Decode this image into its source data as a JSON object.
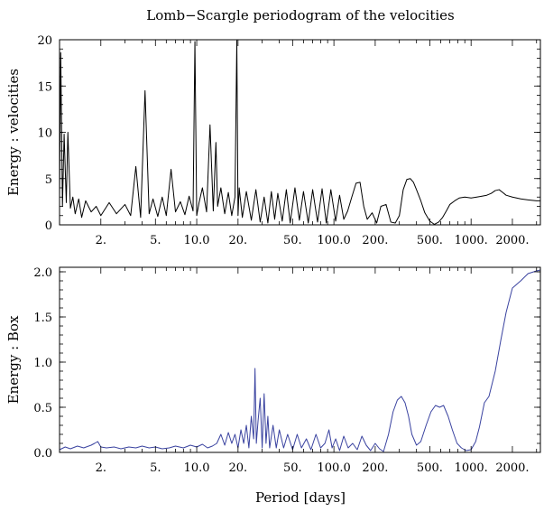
{
  "figure": {
    "title": "Lomb−Scargle periodogram of the velocities",
    "xlabel": "Period [days]"
  },
  "chart_data": [
    {
      "type": "line",
      "title": "Lomb−Scargle periodogram of the velocities",
      "xlabel": "Period [days]",
      "ylabel": "Energy : velocities",
      "xscale": "log",
      "xlim": [
        1.0,
        3200
      ],
      "ylim": [
        0,
        20
      ],
      "x_ticks": [
        2,
        5,
        10,
        20,
        50,
        100,
        200,
        500,
        1000,
        2000
      ],
      "x_tick_labels": [
        "2.",
        "5.",
        "10.0",
        "20.",
        "50.",
        "100.0",
        "200.",
        "500.",
        "1000.",
        "2000."
      ],
      "y_ticks": [
        0,
        5,
        10,
        15,
        20
      ],
      "y_tick_labels": [
        "0",
        "5",
        "10",
        "15",
        "20"
      ],
      "grid": false,
      "line_color": "#000000",
      "series": [
        {
          "x": [
            1.0,
            1.02,
            1.05,
            1.08,
            1.12,
            1.15,
            1.2,
            1.25,
            1.3,
            1.38,
            1.45,
            1.55,
            1.7,
            1.85,
            2.0,
            2.3,
            2.6,
            3.0,
            3.3,
            3.6,
            3.9,
            4.2,
            4.5,
            4.8,
            5.2,
            5.6,
            6.0,
            6.5,
            7.0,
            7.6,
            8.2,
            8.8,
            9.4,
            9.7,
            10.0,
            10.4,
            11.0,
            11.8,
            12.5,
            13.2,
            13.8,
            14.2,
            15.0,
            16.0,
            17.0,
            18.0,
            19.0,
            19.6,
            20.0,
            20.4,
            21.5,
            23.0,
            25.0,
            27.0,
            29.0,
            31.0,
            33.0,
            35.0,
            37.0,
            39.0,
            42.0,
            45.0,
            48.0,
            52.0,
            56.0,
            60.0,
            65.0,
            70.0,
            76.0,
            82.0,
            88.0,
            95.0,
            103.0,
            110.0,
            118.0,
            126.0,
            135.0,
            145.0,
            155.0,
            165.0,
            175.0,
            190.0,
            205.0,
            220.0,
            240.0,
            260.0,
            280.0,
            300.0,
            320.0,
            340.0,
            360.0,
            380.0,
            400.0,
            430.0,
            460.0,
            500.0,
            540.0,
            580.0,
            620.0,
            660.0,
            700.0,
            760.0,
            820.0,
            900.0,
            1000.0,
            1100.0,
            1200.0,
            1300.0,
            1400.0,
            1500.0,
            1600.0,
            1700.0,
            1800.0,
            2000.0,
            2300.0,
            2600.0,
            3000.0,
            3200.0
          ],
          "values": [
            3.0,
            18.6,
            2.0,
            9.8,
            2.4,
            10.0,
            1.8,
            3.0,
            1.2,
            2.8,
            0.8,
            2.6,
            1.4,
            2.0,
            1.0,
            2.4,
            1.2,
            2.2,
            1.0,
            6.3,
            0.8,
            14.5,
            1.2,
            2.8,
            0.9,
            3.0,
            1.0,
            6.0,
            1.4,
            2.5,
            1.1,
            3.1,
            1.5,
            19.8,
            1.0,
            2.4,
            4.0,
            1.4,
            10.8,
            1.5,
            8.9,
            2.0,
            4.0,
            1.2,
            3.5,
            1.0,
            3.0,
            19.9,
            1.0,
            4.0,
            0.8,
            3.6,
            0.5,
            3.8,
            0.3,
            3.0,
            0.2,
            3.6,
            0.6,
            3.4,
            0.4,
            3.8,
            0.2,
            4.0,
            0.5,
            3.6,
            0.2,
            3.8,
            0.3,
            3.9,
            0.2,
            3.8,
            0.4,
            3.2,
            0.6,
            1.5,
            3.0,
            4.5,
            4.6,
            2.0,
            0.6,
            1.3,
            0.2,
            2.0,
            2.2,
            0.3,
            0.2,
            1.0,
            3.8,
            4.9,
            5.0,
            4.6,
            3.8,
            2.6,
            1.3,
            0.4,
            0.05,
            0.3,
            0.8,
            1.5,
            2.2,
            2.6,
            2.9,
            3.0,
            2.9,
            3.0,
            3.1,
            3.2,
            3.4,
            3.7,
            3.8,
            3.5,
            3.2,
            3.0,
            2.8,
            2.7,
            2.6,
            2.6
          ]
        }
      ]
    },
    {
      "type": "line",
      "xlabel": "Period [days]",
      "ylabel": "Energy : Box",
      "xscale": "log",
      "xlim": [
        1.0,
        3200
      ],
      "ylim": [
        0,
        2.05
      ],
      "x_ticks": [
        2,
        5,
        10,
        20,
        50,
        100,
        200,
        500,
        1000,
        2000
      ],
      "x_tick_labels": [
        "2.",
        "5.",
        "10.0",
        "20.",
        "50.",
        "100.0",
        "200.",
        "500.",
        "1000.",
        "2000."
      ],
      "y_ticks": [
        0,
        0.5,
        1.0,
        1.5,
        2.0
      ],
      "y_tick_labels": [
        "0.0",
        "0.5",
        "1.0",
        "1.5",
        "2.0"
      ],
      "grid": false,
      "line_color": "#3a43a0",
      "series": [
        {
          "x": [
            1.0,
            1.1,
            1.2,
            1.35,
            1.5,
            1.7,
            1.8,
            1.9,
            2.0,
            2.2,
            2.5,
            2.8,
            3.2,
            3.6,
            4.0,
            4.5,
            5.0,
            5.6,
            6.3,
            7.0,
            8.0,
            9.0,
            10.0,
            11.0,
            12.0,
            13.0,
            14.0,
            15.0,
            16.0,
            17.0,
            18.0,
            19.0,
            20.0,
            21.0,
            22.0,
            23.0,
            24.0,
            25.0,
            26.0,
            26.6,
            27.2,
            28.0,
            29.0,
            30.0,
            31.0,
            32.0,
            33.0,
            34.0,
            36.0,
            38.0,
            40.0,
            43.0,
            46.0,
            50.0,
            54.0,
            58.0,
            63.0,
            68.0,
            74.0,
            80.0,
            86.0,
            92.0,
            97.0,
            103.0,
            110.0,
            118.0,
            127.0,
            137.0,
            148.0,
            160.0,
            172.0,
            185.0,
            200.0,
            215.0,
            230.0,
            250.0,
            270.0,
            290.0,
            310.0,
            330.0,
            350.0,
            370.0,
            400.0,
            430.0,
            470.0,
            510.0,
            550.0,
            590.0,
            630.0,
            680.0,
            730.0,
            790.0,
            850.0,
            920.0,
            1000.0,
            1080.0,
            1150.0,
            1250.0,
            1350.0,
            1500.0,
            1650.0,
            1800.0,
            2000.0,
            2300.0,
            2600.0,
            3000.0,
            3200.0
          ],
          "values": [
            0.03,
            0.06,
            0.04,
            0.07,
            0.05,
            0.08,
            0.1,
            0.12,
            0.06,
            0.05,
            0.06,
            0.04,
            0.06,
            0.05,
            0.07,
            0.05,
            0.06,
            0.04,
            0.05,
            0.07,
            0.05,
            0.08,
            0.06,
            0.09,
            0.05,
            0.07,
            0.1,
            0.2,
            0.08,
            0.22,
            0.1,
            0.2,
            0.05,
            0.25,
            0.1,
            0.3,
            0.05,
            0.4,
            0.15,
            0.93,
            0.1,
            0.35,
            0.6,
            0.05,
            0.65,
            0.1,
            0.4,
            0.05,
            0.3,
            0.05,
            0.25,
            0.05,
            0.2,
            0.03,
            0.2,
            0.05,
            0.15,
            0.03,
            0.2,
            0.05,
            0.1,
            0.25,
            0.05,
            0.15,
            0.02,
            0.18,
            0.05,
            0.1,
            0.03,
            0.18,
            0.08,
            0.02,
            0.1,
            0.04,
            0.01,
            0.2,
            0.45,
            0.58,
            0.62,
            0.55,
            0.4,
            0.2,
            0.08,
            0.12,
            0.3,
            0.45,
            0.52,
            0.5,
            0.52,
            0.4,
            0.25,
            0.1,
            0.05,
            0.02,
            0.03,
            0.12,
            0.28,
            0.55,
            0.62,
            0.9,
            1.25,
            1.55,
            1.82,
            1.9,
            1.98,
            2.01,
            2.02
          ]
        }
      ]
    }
  ]
}
